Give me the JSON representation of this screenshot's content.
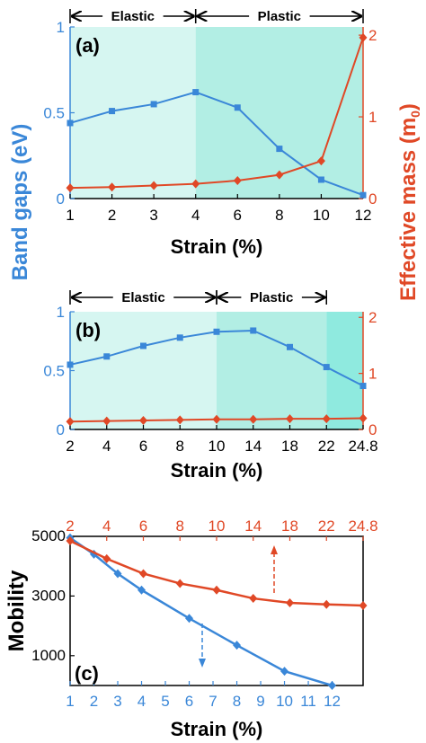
{
  "colors": {
    "band": "#3a87d8",
    "mass": "#e04826",
    "elastic_bg": "#d6f6f1",
    "plastic_bg": "#b2eee4",
    "fracture_bg": "#8feadf",
    "axis": "#000000"
  },
  "shared": {
    "ylabel_left": "Band gaps (eV)",
    "ylabel_right": "Effective mass (m",
    "ylabel_right_sub": "0",
    "ylabel_right_close": ")"
  },
  "chart_data": [
    {
      "id": "a",
      "type": "line",
      "panel_label": "(a)",
      "categories": [
        "1",
        "2",
        "3",
        "4",
        "6",
        "8",
        "10",
        "12"
      ],
      "xlabel": "Strain (%)",
      "ylim_left": [
        0,
        1
      ],
      "ylim_right": [
        0,
        2.1
      ],
      "yticks_left": [
        "0",
        "0.5",
        "1"
      ],
      "yticks_right": [
        "0",
        "1",
        "2"
      ],
      "regions": [
        {
          "label": "Elastic",
          "from": 0,
          "to": 3,
          "fill": "#d6f6f1"
        },
        {
          "label": "Plastic",
          "from": 3,
          "to": 7,
          "fill": "#b2eee4"
        }
      ],
      "series": [
        {
          "axis": "left",
          "color": "#3a87d8",
          "marker": "square",
          "values": [
            0.44,
            0.51,
            0.55,
            0.62,
            0.53,
            0.29,
            0.11,
            0.02
          ]
        },
        {
          "axis": "right",
          "color": "#e04826",
          "marker": "diamond",
          "values": [
            0.13,
            0.14,
            0.16,
            0.18,
            0.22,
            0.29,
            0.46,
            1.97
          ]
        }
      ]
    },
    {
      "id": "b",
      "type": "line",
      "panel_label": "(b)",
      "categories": [
        "2",
        "4",
        "6",
        "8",
        "10",
        "14",
        "18",
        "22",
        "24.8"
      ],
      "xlabel": "Strain (%)",
      "ylim_left": [
        0,
        1
      ],
      "ylim_right": [
        0,
        2.1
      ],
      "yticks_left": [
        "0",
        "0.5",
        "1"
      ],
      "yticks_right": [
        "0",
        "1",
        "2"
      ],
      "regions": [
        {
          "label": "Elastic",
          "from": 0,
          "to": 4,
          "fill": "#d6f6f1"
        },
        {
          "label": "Plastic",
          "from": 4,
          "to": 7,
          "fill": "#b2eee4"
        },
        {
          "label": "",
          "from": 7,
          "to": 8,
          "fill": "#8feadf"
        }
      ],
      "series": [
        {
          "axis": "left",
          "color": "#3a87d8",
          "marker": "square",
          "values": [
            0.55,
            0.62,
            0.71,
            0.78,
            0.83,
            0.84,
            0.7,
            0.53,
            0.37
          ]
        },
        {
          "axis": "right",
          "color": "#e04826",
          "marker": "diamond",
          "values": [
            0.14,
            0.15,
            0.16,
            0.17,
            0.18,
            0.18,
            0.19,
            0.19,
            0.2
          ]
        }
      ]
    },
    {
      "id": "c",
      "type": "line",
      "panel_label": "(c)",
      "ylabel": "Mobility",
      "xlabel": "Strain (%)",
      "x_bottom": [
        "1",
        "2",
        "3",
        "4",
        "5",
        "6",
        "7",
        "8",
        "9",
        "10",
        "11",
        "12"
      ],
      "x_top": [
        "2",
        "4",
        "6",
        "8",
        "10",
        "14",
        "18",
        "22",
        "24.8"
      ],
      "ylim": [
        0,
        5000
      ],
      "yticks": [
        "1000",
        "3000",
        "5000"
      ],
      "series": [
        {
          "axis": "bottom",
          "color": "#3a87d8",
          "marker": "diamond",
          "x": [
            "1",
            "2",
            "3",
            "4",
            "6",
            "8",
            "10",
            "12"
          ],
          "values": [
            4950,
            4400,
            3750,
            3200,
            2250,
            1350,
            480,
            0
          ]
        },
        {
          "axis": "top",
          "color": "#e04826",
          "marker": "diamond",
          "x": [
            "2",
            "4",
            "6",
            "8",
            "10",
            "14",
            "18",
            "22",
            "24.8"
          ],
          "values": [
            4850,
            4250,
            3750,
            3420,
            3200,
            2920,
            2770,
            2720,
            2680
          ]
        }
      ]
    }
  ]
}
